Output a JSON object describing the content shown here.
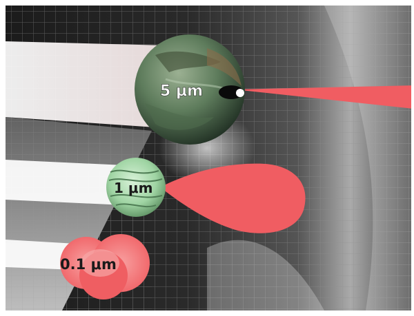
{
  "particles": [
    {
      "label": "5 μm"
    },
    {
      "label": "1 μm"
    },
    {
      "label": "0.1 μm"
    }
  ],
  "colors": {
    "scattering_lobe": "#f05d62",
    "large_particle": "#6f8f6c",
    "medium_particle": "#9fd4a3",
    "small_particle": "#f06a6a",
    "beam": "#ffffff",
    "background_dark": "#141414",
    "grid_line": "#9a9a9a"
  }
}
